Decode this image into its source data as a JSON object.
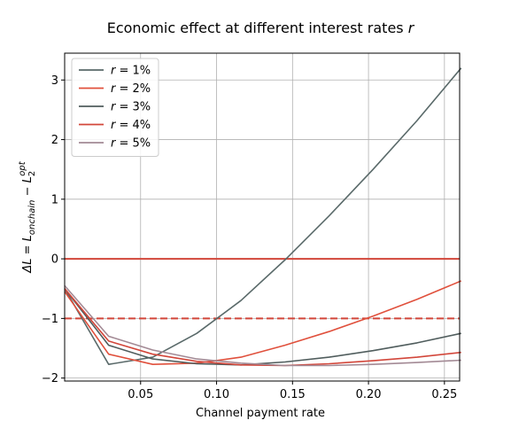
{
  "chart_data": {
    "type": "line",
    "title": "Economic effect at different interest rates r",
    "xlabel": "Channel payment rate",
    "ylabel": "ΔL = L_onchain − L_2^opt",
    "xlim": [
      0.0,
      0.26
    ],
    "ylim": [
      -2.05,
      3.45
    ],
    "xticks": [
      0.05,
      0.1,
      0.15,
      0.2,
      0.25
    ],
    "xtick_labels": [
      "0.05",
      "0.10",
      "0.15",
      "0.20",
      "0.25"
    ],
    "yticks": [
      -2,
      -1,
      0,
      1,
      2,
      3
    ],
    "ytick_labels": [
      "−2",
      "−1",
      "0",
      "1",
      "2",
      "3"
    ],
    "grid": true,
    "legend_position": "top-left",
    "series": [
      {
        "name": "r = 1%",
        "color": "#5a6a6a",
        "x": [
          0.0,
          0.029,
          0.058,
          0.087,
          0.116,
          0.145,
          0.174,
          0.203,
          0.232,
          0.261
        ],
        "y": [
          -0.5,
          -1.77,
          -1.65,
          -1.25,
          -0.7,
          -0.02,
          0.72,
          1.5,
          2.32,
          3.2
        ]
      },
      {
        "name": "r = 2%",
        "color": "#e0503c",
        "x": [
          0.0,
          0.029,
          0.058,
          0.087,
          0.116,
          0.145,
          0.174,
          0.203,
          0.232,
          0.261
        ],
        "y": [
          -0.55,
          -1.6,
          -1.77,
          -1.75,
          -1.65,
          -1.45,
          -1.22,
          -0.96,
          -0.68,
          -0.37
        ]
      },
      {
        "name": "r = 3%",
        "color": "#505d5d",
        "x": [
          0.0,
          0.029,
          0.058,
          0.087,
          0.116,
          0.145,
          0.174,
          0.203,
          0.232,
          0.261
        ],
        "y": [
          -0.5,
          -1.45,
          -1.68,
          -1.76,
          -1.78,
          -1.73,
          -1.65,
          -1.54,
          -1.41,
          -1.25
        ]
      },
      {
        "name": "r = 4%",
        "color": "#d2463a",
        "x": [
          0.0,
          0.029,
          0.058,
          0.087,
          0.116,
          0.145,
          0.174,
          0.203,
          0.232,
          0.261
        ],
        "y": [
          -0.5,
          -1.38,
          -1.6,
          -1.72,
          -1.78,
          -1.79,
          -1.76,
          -1.71,
          -1.65,
          -1.57
        ]
      },
      {
        "name": "r = 5%",
        "color": "#a38a95",
        "x": [
          0.0,
          0.029,
          0.058,
          0.087,
          0.116,
          0.145,
          0.174,
          0.203,
          0.232,
          0.261
        ],
        "y": [
          -0.45,
          -1.3,
          -1.53,
          -1.68,
          -1.75,
          -1.79,
          -1.79,
          -1.77,
          -1.74,
          -1.7
        ]
      }
    ],
    "reference_lines": [
      {
        "y": 0,
        "style": "solid",
        "color": "#d2463a"
      },
      {
        "y": -1,
        "style": "dashed",
        "color": "#d2463a"
      }
    ]
  }
}
